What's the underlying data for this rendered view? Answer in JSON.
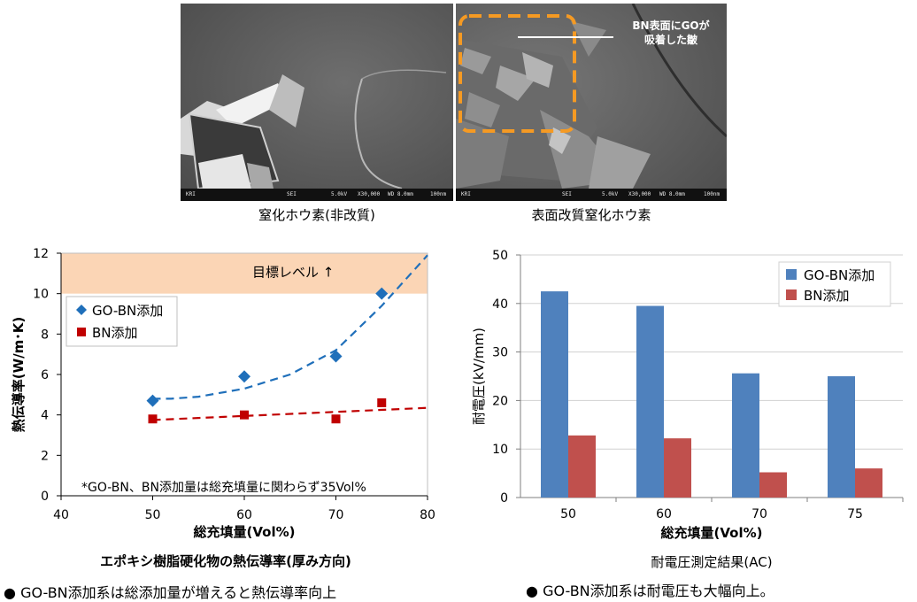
{
  "images": {
    "left_caption": "窒化ホウ素(非改質)",
    "right_caption": "表面改質窒化ホウ素",
    "right_annotation_line1": "BN表面にGOが",
    "right_annotation_line2": "吸着した皺",
    "scale_bar": {
      "left_logo": "KRI",
      "mode": "SEI",
      "voltage": "5.0kV",
      "magnification": "X30,000",
      "wd": "WD 8.0mm",
      "scale": "100nm"
    }
  },
  "chart_data": [
    {
      "type": "scatter",
      "title": "エポキシ樹脂硬化物の熱伝導率(厚み方向)",
      "xlabel": "総充填量(Vol%)",
      "ylabel": "熱伝導率(W/m･K)",
      "xlim": [
        40,
        80
      ],
      "ylim": [
        0,
        12
      ],
      "x_ticks": [
        "40",
        "50",
        "60",
        "70",
        "80"
      ],
      "y_ticks": [
        "0",
        "2",
        "4",
        "6",
        "8",
        "10",
        "12"
      ],
      "target_band": {
        "from": 10,
        "to": 12,
        "label": "目標レベル ↑",
        "color": "#fbd5b5"
      },
      "note": "*GO-BN、BN添加量は総充填量に関わらず35Vol%",
      "legend_position": "left",
      "series": [
        {
          "name": "GO-BN添加",
          "marker": "diamond",
          "color": "#1f6fba",
          "x": [
            50,
            60,
            70,
            75
          ],
          "y": [
            4.7,
            5.9,
            6.9,
            10.0
          ],
          "trend": [
            [
              50,
              4.8
            ],
            [
              52,
              4.8
            ],
            [
              55,
              4.9
            ],
            [
              60,
              5.3
            ],
            [
              65,
              6.0
            ],
            [
              70,
              7.2
            ],
            [
              75,
              9.4
            ],
            [
              80,
              11.9
            ]
          ]
        },
        {
          "name": "BN添加",
          "marker": "square",
          "color": "#c00000",
          "x": [
            50,
            60,
            70,
            75
          ],
          "y": [
            3.8,
            4.0,
            3.8,
            4.6
          ],
          "trend": [
            [
              50,
              3.75
            ],
            [
              80,
              4.35
            ]
          ]
        }
      ]
    },
    {
      "type": "bar",
      "title": "耐電圧測定結果(AC)",
      "xlabel": "総充填量(Vol%)",
      "ylabel": "耐電圧(kV/mm)",
      "categories": [
        "50",
        "60",
        "70",
        "75"
      ],
      "ylim": [
        0,
        50
      ],
      "y_ticks": [
        "0",
        "10",
        "20",
        "30",
        "40",
        "50"
      ],
      "grid": true,
      "legend_position": "top-right",
      "series": [
        {
          "name": "GO-BN添加",
          "color": "#4f81bd",
          "values": [
            42.5,
            39.5,
            25.6,
            25.0
          ]
        },
        {
          "name": "BN添加",
          "color": "#c0504d",
          "values": [
            12.8,
            12.2,
            5.2,
            6.0
          ]
        }
      ]
    }
  ],
  "bullets": {
    "left": "GO-BN添加系は総添加量が増えると熱伝導率向上",
    "right": "GO-BN添加系は耐電圧も大幅向上。"
  }
}
